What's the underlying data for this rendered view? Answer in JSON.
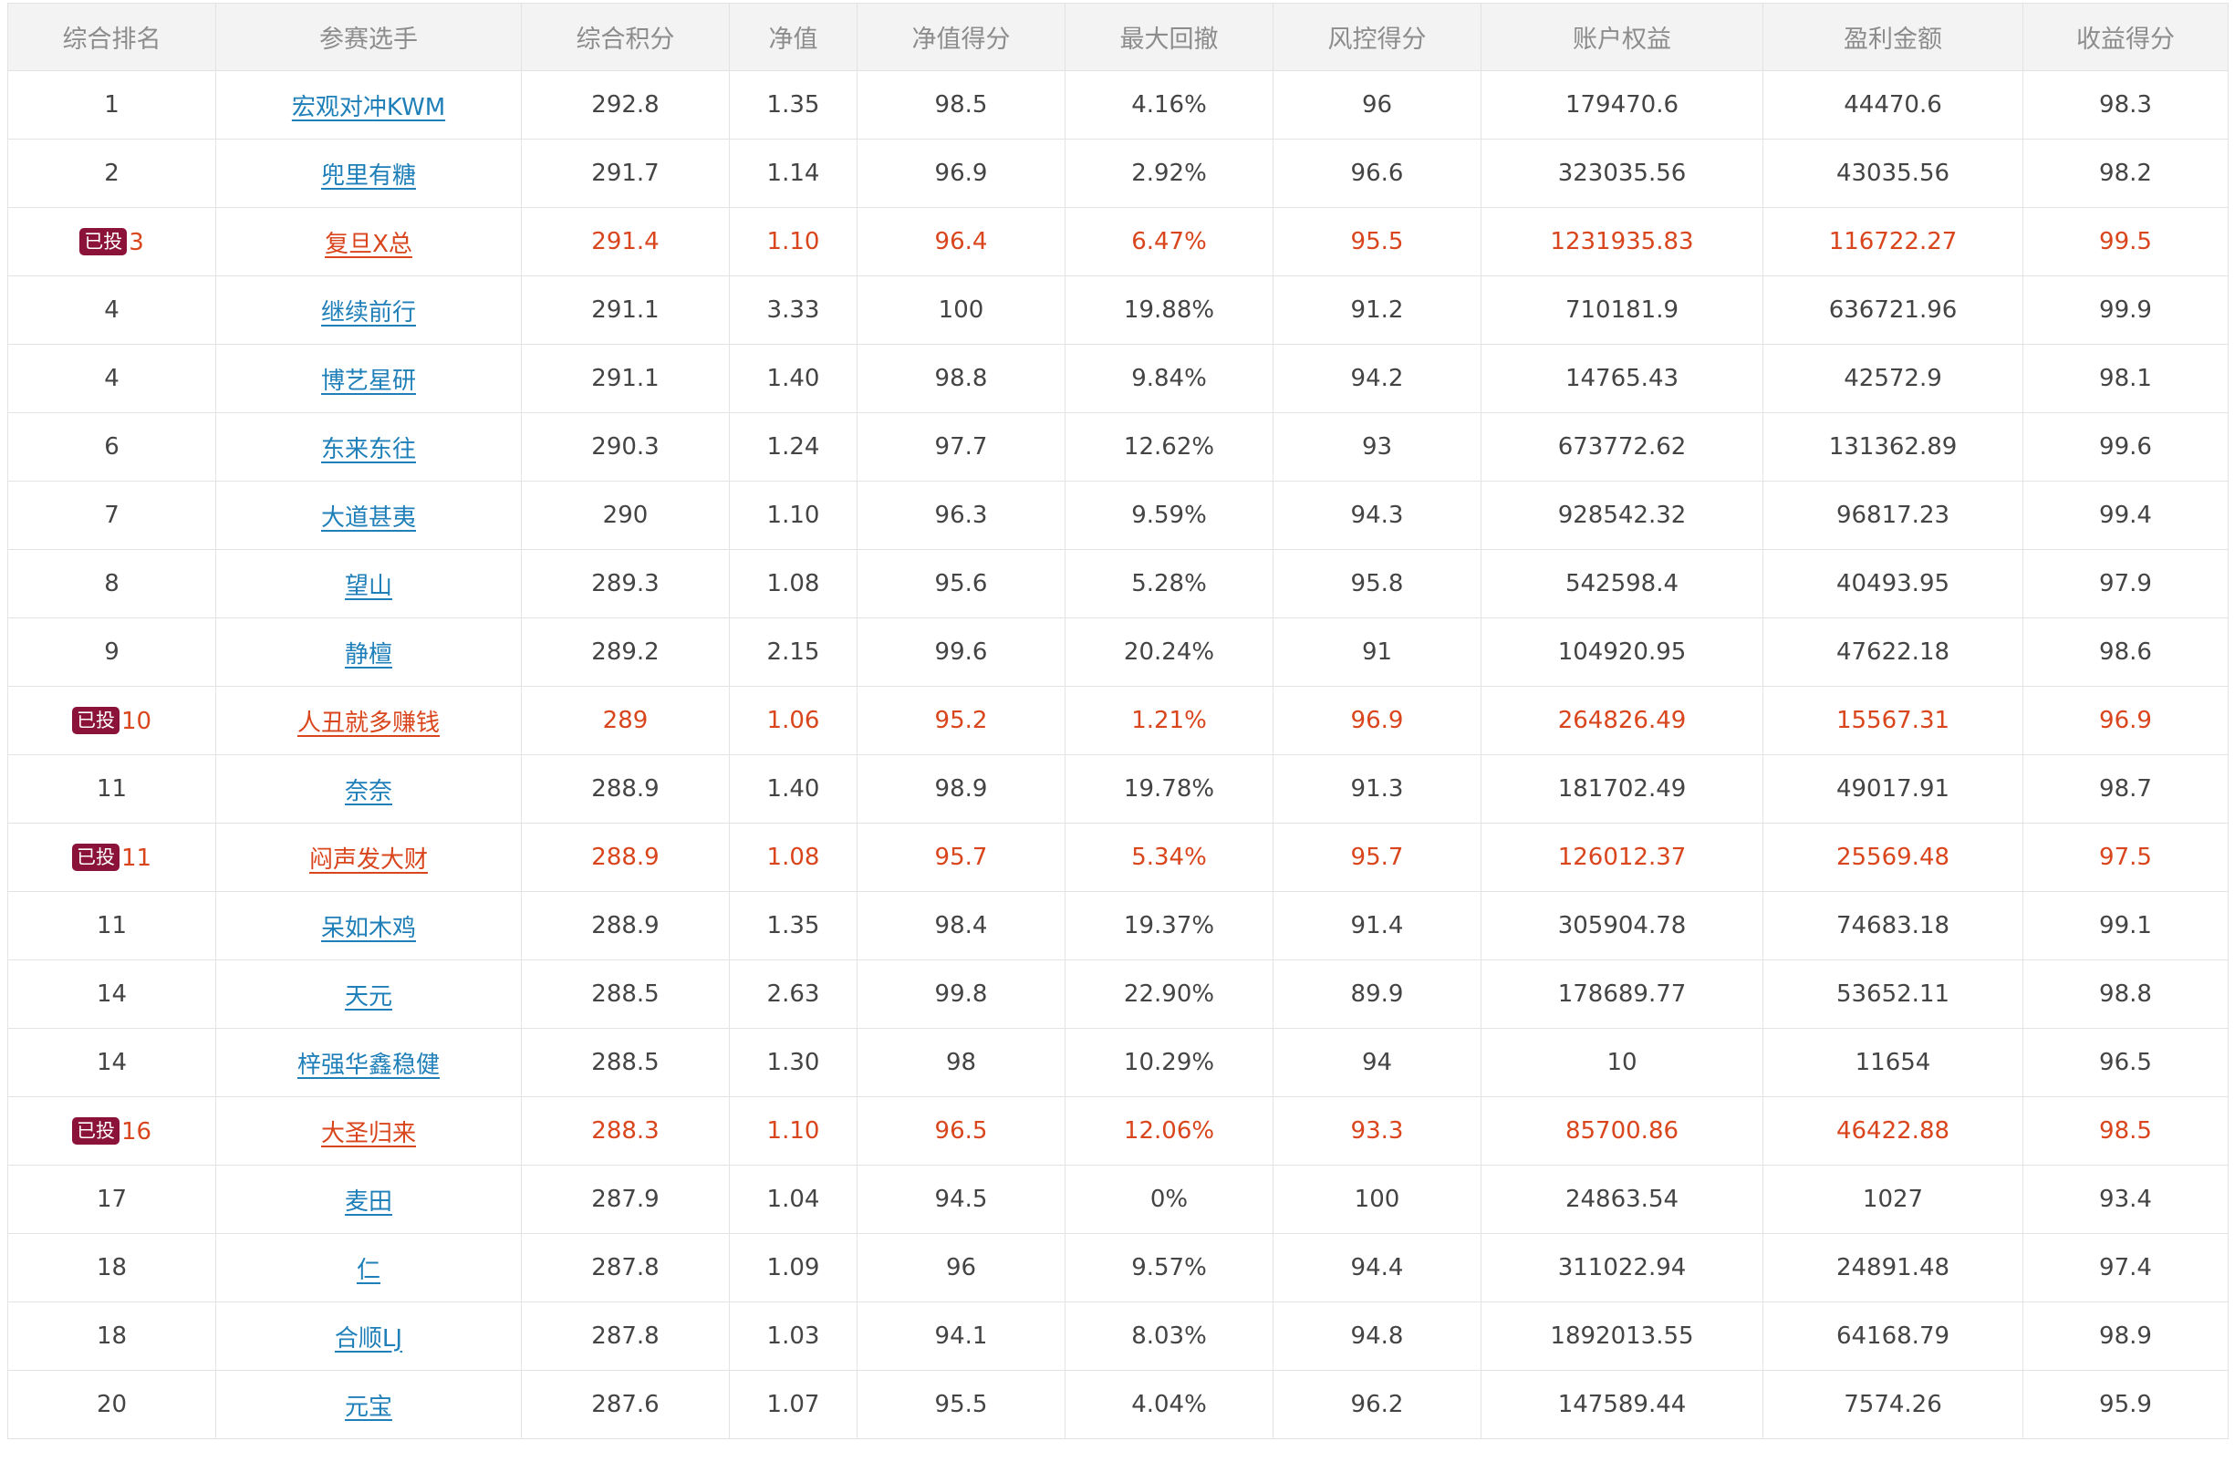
{
  "columns": [
    "综合排名",
    "参赛选手",
    "综合积分",
    "净值",
    "净值得分",
    "最大回撤",
    "风控得分",
    "账户权益",
    "盈利金额",
    "收益得分"
  ],
  "badge_label": "已投",
  "colors": {
    "invested": "#d9451c",
    "link": "#1f7fb8",
    "badge": "#8b1339",
    "header_bg": "#f3f3f3"
  },
  "rows": [
    {
      "rank": "1",
      "name": "宏观对冲KWM",
      "invested": false,
      "score": "292.8",
      "nav": "1.35",
      "nav_score": "98.5",
      "drawdown": "4.16%",
      "risk_score": "96",
      "equity": "179470.6",
      "profit": "44470.6",
      "return_score": "98.3"
    },
    {
      "rank": "2",
      "name": "兜里有糖",
      "invested": false,
      "score": "291.7",
      "nav": "1.14",
      "nav_score": "96.9",
      "drawdown": "2.92%",
      "risk_score": "96.6",
      "equity": "323035.56",
      "profit": "43035.56",
      "return_score": "98.2"
    },
    {
      "rank": "3",
      "name": "复旦X总",
      "invested": true,
      "score": "291.4",
      "nav": "1.10",
      "nav_score": "96.4",
      "drawdown": "6.47%",
      "risk_score": "95.5",
      "equity": "1231935.83",
      "profit": "116722.27",
      "return_score": "99.5"
    },
    {
      "rank": "4",
      "name": "继续前行",
      "invested": false,
      "score": "291.1",
      "nav": "3.33",
      "nav_score": "100",
      "drawdown": "19.88%",
      "risk_score": "91.2",
      "equity": "710181.9",
      "profit": "636721.96",
      "return_score": "99.9"
    },
    {
      "rank": "4",
      "name": "博艺星研",
      "invested": false,
      "score": "291.1",
      "nav": "1.40",
      "nav_score": "98.8",
      "drawdown": "9.84%",
      "risk_score": "94.2",
      "equity": "14765.43",
      "profit": "42572.9",
      "return_score": "98.1"
    },
    {
      "rank": "6",
      "name": "东来东往",
      "invested": false,
      "score": "290.3",
      "nav": "1.24",
      "nav_score": "97.7",
      "drawdown": "12.62%",
      "risk_score": "93",
      "equity": "673772.62",
      "profit": "131362.89",
      "return_score": "99.6"
    },
    {
      "rank": "7",
      "name": "大道甚夷",
      "invested": false,
      "score": "290",
      "nav": "1.10",
      "nav_score": "96.3",
      "drawdown": "9.59%",
      "risk_score": "94.3",
      "equity": "928542.32",
      "profit": "96817.23",
      "return_score": "99.4"
    },
    {
      "rank": "8",
      "name": "望山",
      "invested": false,
      "score": "289.3",
      "nav": "1.08",
      "nav_score": "95.6",
      "drawdown": "5.28%",
      "risk_score": "95.8",
      "equity": "542598.4",
      "profit": "40493.95",
      "return_score": "97.9"
    },
    {
      "rank": "9",
      "name": "静檀",
      "invested": false,
      "score": "289.2",
      "nav": "2.15",
      "nav_score": "99.6",
      "drawdown": "20.24%",
      "risk_score": "91",
      "equity": "104920.95",
      "profit": "47622.18",
      "return_score": "98.6"
    },
    {
      "rank": "10",
      "name": "人丑就多赚钱",
      "invested": true,
      "score": "289",
      "nav": "1.06",
      "nav_score": "95.2",
      "drawdown": "1.21%",
      "risk_score": "96.9",
      "equity": "264826.49",
      "profit": "15567.31",
      "return_score": "96.9"
    },
    {
      "rank": "11",
      "name": "奈奈",
      "invested": false,
      "score": "288.9",
      "nav": "1.40",
      "nav_score": "98.9",
      "drawdown": "19.78%",
      "risk_score": "91.3",
      "equity": "181702.49",
      "profit": "49017.91",
      "return_score": "98.7"
    },
    {
      "rank": "11",
      "name": "闷声发大财",
      "invested": true,
      "score": "288.9",
      "nav": "1.08",
      "nav_score": "95.7",
      "drawdown": "5.34%",
      "risk_score": "95.7",
      "equity": "126012.37",
      "profit": "25569.48",
      "return_score": "97.5"
    },
    {
      "rank": "11",
      "name": "呆如木鸡",
      "invested": false,
      "score": "288.9",
      "nav": "1.35",
      "nav_score": "98.4",
      "drawdown": "19.37%",
      "risk_score": "91.4",
      "equity": "305904.78",
      "profit": "74683.18",
      "return_score": "99.1"
    },
    {
      "rank": "14",
      "name": "天元",
      "invested": false,
      "score": "288.5",
      "nav": "2.63",
      "nav_score": "99.8",
      "drawdown": "22.90%",
      "risk_score": "89.9",
      "equity": "178689.77",
      "profit": "53652.11",
      "return_score": "98.8"
    },
    {
      "rank": "14",
      "name": "梓强华鑫稳健",
      "invested": false,
      "score": "288.5",
      "nav": "1.30",
      "nav_score": "98",
      "drawdown": "10.29%",
      "risk_score": "94",
      "equity": "10",
      "profit": "11654",
      "return_score": "96.5"
    },
    {
      "rank": "16",
      "name": "大圣归来",
      "invested": true,
      "score": "288.3",
      "nav": "1.10",
      "nav_score": "96.5",
      "drawdown": "12.06%",
      "risk_score": "93.3",
      "equity": "85700.86",
      "profit": "46422.88",
      "return_score": "98.5"
    },
    {
      "rank": "17",
      "name": "麦田",
      "invested": false,
      "score": "287.9",
      "nav": "1.04",
      "nav_score": "94.5",
      "drawdown": "0%",
      "risk_score": "100",
      "equity": "24863.54",
      "profit": "1027",
      "return_score": "93.4"
    },
    {
      "rank": "18",
      "name": "仁",
      "invested": false,
      "score": "287.8",
      "nav": "1.09",
      "nav_score": "96",
      "drawdown": "9.57%",
      "risk_score": "94.4",
      "equity": "311022.94",
      "profit": "24891.48",
      "return_score": "97.4"
    },
    {
      "rank": "18",
      "name": "合顺LJ",
      "invested": false,
      "score": "287.8",
      "nav": "1.03",
      "nav_score": "94.1",
      "drawdown": "8.03%",
      "risk_score": "94.8",
      "equity": "1892013.55",
      "profit": "64168.79",
      "return_score": "98.9"
    },
    {
      "rank": "20",
      "name": "元宝",
      "invested": false,
      "score": "287.6",
      "nav": "1.07",
      "nav_score": "95.5",
      "drawdown": "4.04%",
      "risk_score": "96.2",
      "equity": "147589.44",
      "profit": "7574.26",
      "return_score": "95.9"
    }
  ]
}
